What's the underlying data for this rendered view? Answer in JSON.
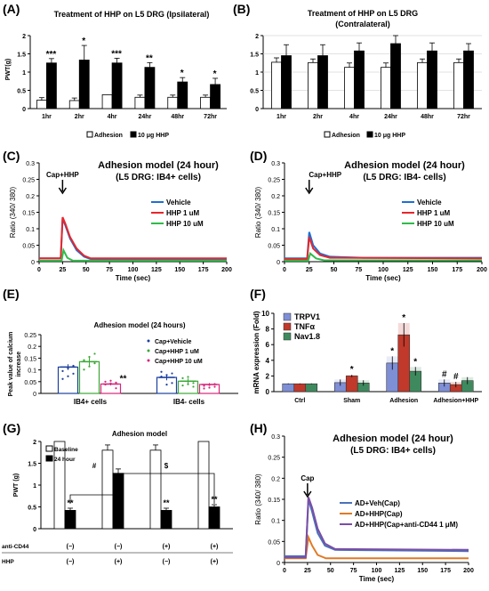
{
  "panel_labels": {
    "A": "(A)",
    "B": "(B)",
    "C": "(C)",
    "D": "(D)",
    "E": "(E)",
    "F": "(F)",
    "G": "(G)",
    "H": "(H)"
  },
  "chart_data": [
    {
      "id": "A",
      "type": "bar",
      "title": "Treatment of HHP on L5 DRG (Ipsilateral)",
      "ylabel": "PWT(g)",
      "ylim": [
        0,
        2
      ],
      "yticks": [
        "0",
        "0.5",
        "1",
        "1.5",
        "2"
      ],
      "categories": [
        "1hr",
        "2hr",
        "4hr",
        "24hr",
        "48hr",
        "72hr"
      ],
      "series": [
        {
          "name": "Adhesion",
          "color": "#ffffff",
          "values": [
            0.23,
            0.22,
            0.38,
            0.31,
            0.31,
            0.31
          ],
          "errors": [
            0.07,
            0.07,
            0.0,
            0.06,
            0.06,
            0.06
          ]
        },
        {
          "name": "10 μg HHP",
          "color": "#000000",
          "values": [
            1.25,
            1.33,
            1.25,
            1.13,
            0.73,
            0.66
          ],
          "errors": [
            0.12,
            0.4,
            0.13,
            0.13,
            0.12,
            0.17
          ]
        }
      ],
      "annotations": [
        "***",
        "*",
        "***",
        "**",
        "*",
        "*"
      ],
      "legend_position": "bottom"
    },
    {
      "id": "B",
      "type": "bar",
      "title": "Treatment of HHP on L5 DRG",
      "subtitle": "(Contralateral)",
      "ylim": [
        0,
        2
      ],
      "yticks": [
        "0",
        "0.5",
        "1",
        "1.5",
        "2"
      ],
      "categories": [
        "1hr",
        "2hr",
        "4hr",
        "24hr",
        "48hr",
        "72hr"
      ],
      "series": [
        {
          "name": "Adhesion",
          "color": "#ffffff",
          "values": [
            1.27,
            1.26,
            1.13,
            1.13,
            1.26,
            1.26
          ],
          "errors": [
            0.12,
            0.1,
            0.12,
            0.12,
            0.1,
            0.1
          ]
        },
        {
          "name": "10 μg HHP",
          "color": "#000000",
          "values": [
            1.45,
            1.45,
            1.58,
            1.78,
            1.58,
            1.58
          ],
          "errors": [
            0.3,
            0.3,
            0.22,
            0.22,
            0.22,
            0.2
          ]
        }
      ],
      "legend_position": "bottom"
    },
    {
      "id": "C",
      "type": "line",
      "title": "Adhesion model (24 hour)",
      "subtitle": "(L5 DRG: IB4+ cells)",
      "xlabel": "Time (sec)",
      "ylabel": "Ratio (340/ 380)",
      "xlim": [
        0,
        200
      ],
      "ylim": [
        0,
        0.3
      ],
      "xticks": [
        "0",
        "25",
        "50",
        "75",
        "100",
        "125",
        "150",
        "175",
        "200"
      ],
      "yticks": [
        "0",
        "0.05",
        "0.1",
        "0.15",
        "0.2",
        "0.25",
        "0.3"
      ],
      "annotation": "Cap+HHP",
      "series": [
        {
          "name": "Vehicle",
          "color": "#1f6fd1",
          "points": [
            [
              0,
              0.01
            ],
            [
              23,
              0.01
            ],
            [
              25,
              0.13
            ],
            [
              28,
              0.11
            ],
            [
              33,
              0.07
            ],
            [
              40,
              0.035
            ],
            [
              48,
              0.015
            ],
            [
              55,
              0.008
            ],
            [
              200,
              0.008
            ]
          ]
        },
        {
          "name": "HHP 1 uM",
          "color": "#e8262b",
          "points": [
            [
              0,
              0.01
            ],
            [
              23,
              0.01
            ],
            [
              25,
              0.135
            ],
            [
              28,
              0.115
            ],
            [
              33,
              0.075
            ],
            [
              40,
              0.04
            ],
            [
              48,
              0.018
            ],
            [
              55,
              0.01
            ],
            [
              200,
              0.01
            ]
          ]
        },
        {
          "name": "HHP 10 uM",
          "color": "#2fbb4a",
          "points": [
            [
              0,
              0.003
            ],
            [
              24,
              0.003
            ],
            [
              26,
              0.035
            ],
            [
              30,
              0.012
            ],
            [
              36,
              0.003
            ],
            [
              200,
              0.003
            ]
          ]
        }
      ]
    },
    {
      "id": "D",
      "type": "line",
      "title": "Adhesion model (24 hour)",
      "subtitle": "(L5 DRG: IB4- cells)",
      "xlabel": "Time (sec)",
      "ylabel": "Ratio (340/ 380)",
      "xlim": [
        0,
        200
      ],
      "ylim": [
        0,
        0.3
      ],
      "xticks": [
        "0",
        "25",
        "50",
        "75",
        "100",
        "125",
        "150",
        "175",
        "200"
      ],
      "yticks": [
        "0",
        "0.05",
        "0.1",
        "0.15",
        "0.2",
        "0.25",
        "0.3"
      ],
      "annotation": "Cap+HHP",
      "series": [
        {
          "name": "Vehicle",
          "color": "#1f6fd1",
          "points": [
            [
              0,
              0.01
            ],
            [
              23,
              0.01
            ],
            [
              25,
              0.09
            ],
            [
              29,
              0.05
            ],
            [
              36,
              0.025
            ],
            [
              46,
              0.015
            ],
            [
              80,
              0.012
            ],
            [
              200,
              0.012
            ]
          ]
        },
        {
          "name": "HHP 1 uM",
          "color": "#e8262b",
          "points": [
            [
              0,
              0.008
            ],
            [
              23,
              0.008
            ],
            [
              25,
              0.075
            ],
            [
              29,
              0.04
            ],
            [
              36,
              0.02
            ],
            [
              46,
              0.012
            ],
            [
              200,
              0.01
            ]
          ]
        },
        {
          "name": "HHP 10 uM",
          "color": "#2fbb4a",
          "points": [
            [
              0,
              0.003
            ],
            [
              24,
              0.003
            ],
            [
              26,
              0.025
            ],
            [
              32,
              0.01
            ],
            [
              40,
              0.004
            ],
            [
              200,
              0.004
            ]
          ]
        }
      ]
    },
    {
      "id": "E",
      "type": "bar",
      "title": "Adhesion model (24 hours)",
      "ylabel": "Peak value of calcium increase",
      "ylim": [
        0,
        0.25
      ],
      "yticks": [
        "0",
        "0.05",
        "0.1",
        "0.15",
        "0.2",
        "0.25"
      ],
      "categories": [
        "IB4+ cells",
        "IB4- cells"
      ],
      "series": [
        {
          "name": "Cap+Vehicle",
          "color": "#1b3f9e",
          "values": [
            0.112,
            0.068
          ],
          "errors": [
            0.012,
            0.012
          ]
        },
        {
          "name": "Cap+HHP 1 uM",
          "color": "#3aa835",
          "values": [
            0.135,
            0.052
          ],
          "errors": [
            0.02,
            0.012
          ]
        },
        {
          "name": "Cap+HHP 10 uM",
          "color": "#d6257a",
          "values": [
            0.04,
            0.038
          ],
          "errors": [
            0.006,
            0.006
          ]
        }
      ],
      "annotations": [
        "**"
      ],
      "legend_position": "top-right"
    },
    {
      "id": "F",
      "type": "bar",
      "ylabel": "mRNA expression (Fold)",
      "ylim": [
        0,
        10
      ],
      "yticks": [
        "0",
        "2",
        "4",
        "6",
        "8",
        "10"
      ],
      "categories": [
        "Ctrl",
        "Sham",
        "Adhesion",
        "Adhesion+HHP"
      ],
      "series": [
        {
          "name": "TRPV1",
          "color": "#7f8fd6",
          "values": [
            1.0,
            1.15,
            3.65,
            1.1
          ],
          "errors": [
            0.05,
            0.4,
            0.85,
            0.45
          ]
        },
        {
          "name": "TNFα",
          "color": "#c0392b",
          "values": [
            1.0,
            2.0,
            7.25,
            0.9
          ],
          "errors": [
            0.05,
            0.15,
            1.5,
            0.35
          ]
        },
        {
          "name": "Nav1.8",
          "color": "#3e8a5e",
          "values": [
            1.0,
            1.1,
            2.6,
            1.4
          ],
          "errors": [
            0.05,
            0.35,
            0.55,
            0.45
          ]
        }
      ],
      "annotations": [
        "*",
        "*",
        "*",
        "*",
        "#",
        "#"
      ],
      "legend_position": "top-left"
    },
    {
      "id": "G",
      "type": "bar",
      "title": "Adhesion model",
      "ylabel": "PWT (g)",
      "ylim": [
        0,
        2
      ],
      "yticks": [
        "0",
        "0.5",
        "1",
        "1.5",
        "2"
      ],
      "categories": [
        "1",
        "2",
        "3",
        "4"
      ],
      "row_labels": [
        "anti-CD44",
        "HHP"
      ],
      "row_values": [
        [
          "(−)",
          "(−)",
          "(+)",
          "(+)"
        ],
        [
          "(−)",
          "(+)",
          "(−)",
          "(+)"
        ]
      ],
      "series": [
        {
          "name": "Baseline",
          "color": "#ffffff",
          "values": [
            2.0,
            1.8,
            1.8,
            2.0
          ],
          "errors": [
            0.0,
            0.12,
            0.12,
            0.0
          ]
        },
        {
          "name": "24 hour",
          "color": "#000000",
          "values": [
            0.42,
            1.27,
            0.42,
            0.5
          ],
          "errors": [
            0.05,
            0.1,
            0.05,
            0.05
          ]
        }
      ],
      "annotations": [
        "**",
        "**",
        "**",
        "#",
        "$"
      ],
      "legend_position": "top-left"
    },
    {
      "id": "H",
      "type": "line",
      "title": "Adhesion model (24 hour)",
      "subtitle": "(L5 DRG: IB4+ cells)",
      "xlabel": "Time (sec)",
      "ylabel": "Ratio (340/ 380)",
      "xlim": [
        0,
        200
      ],
      "ylim": [
        0,
        0.3
      ],
      "xticks": [
        "0",
        "25",
        "50",
        "75",
        "100",
        "125",
        "150",
        "175",
        "200"
      ],
      "yticks": [
        "0",
        "0.05",
        "0.1",
        "0.15",
        "0.2",
        "0.25",
        "0.3"
      ],
      "annotation": "Cap",
      "series": [
        {
          "name": "AD+Veh(Cap)",
          "color": "#4a72b8",
          "points": [
            [
              0,
              0.015
            ],
            [
              23,
              0.015
            ],
            [
              26,
              0.15
            ],
            [
              30,
              0.12
            ],
            [
              36,
              0.07
            ],
            [
              44,
              0.04
            ],
            [
              55,
              0.03
            ],
            [
              200,
              0.027
            ]
          ]
        },
        {
          "name": "AD+HHP(Cap)",
          "color": "#e07a26",
          "points": [
            [
              0,
              0.01
            ],
            [
              23,
              0.01
            ],
            [
              26,
              0.06
            ],
            [
              30,
              0.04
            ],
            [
              36,
              0.018
            ],
            [
              45,
              0.01
            ],
            [
              200,
              0.01
            ]
          ]
        },
        {
          "name": "AD+HHP(Cap+anti-CD44 1 μM)",
          "color": "#7a4ea6",
          "points": [
            [
              0,
              0.012
            ],
            [
              23,
              0.012
            ],
            [
              26,
              0.155
            ],
            [
              30,
              0.13
            ],
            [
              36,
              0.08
            ],
            [
              44,
              0.045
            ],
            [
              55,
              0.032
            ],
            [
              200,
              0.03
            ]
          ]
        }
      ]
    }
  ]
}
